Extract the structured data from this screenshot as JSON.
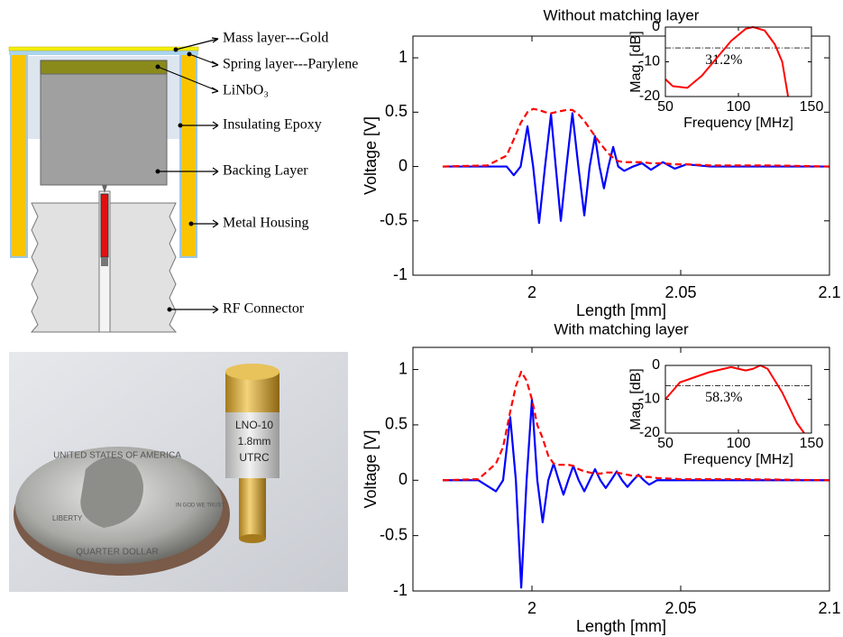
{
  "diagram": {
    "labels": [
      "Mass layer---Gold",
      "Spring layer---Parylene",
      "LiNbO₃",
      "Insulating Epoxy",
      "Backing Layer",
      "Metal Housing",
      "RF Connector"
    ]
  },
  "photo": {
    "device_labels": [
      "LNO-10",
      "1.8mm",
      "UTRC"
    ],
    "coin_labels": [
      "UNITED STATES OF AMERICA",
      "LIBERTY",
      "IN GOD WE TRUST",
      "QUARTER DOLLAR"
    ]
  },
  "chart_data": [
    {
      "type": "line",
      "title": "Without matching layer",
      "x_label": "Length [mm]",
      "y_label": "Voltage [V]",
      "xlim": [
        1.96,
        2.1
      ],
      "ylim": [
        -1,
        1.2
      ],
      "xticks": [
        2,
        2.05,
        2.1
      ],
      "yticks": [
        -1,
        -0.5,
        0,
        0.5,
        1
      ],
      "x": [
        1.97,
        1.985,
        1.9915,
        1.9939,
        1.9962,
        1.9985,
        2.0004,
        2.0024,
        2.0044,
        2.0064,
        2.008,
        2.0097,
        2.0116,
        2.0136,
        2.0156,
        2.0176,
        2.0194,
        2.0212,
        2.0227,
        2.0242,
        2.0257,
        2.0273,
        2.029,
        2.031,
        2.034,
        2.037,
        2.04,
        2.044,
        2.048,
        2.052,
        2.06,
        2.08,
        2.1
      ],
      "series": [
        {
          "color": "#0000ff",
          "dashed": false,
          "values": [
            0,
            0,
            0,
            -0.08,
            0,
            0.37,
            0,
            -0.52,
            0,
            0.48,
            0,
            -0.5,
            0,
            0.49,
            0,
            -0.45,
            0,
            0.28,
            0,
            -0.2,
            0,
            0.18,
            0,
            -0.04,
            0,
            0.03,
            -0.03,
            0.04,
            -0.02,
            0.02,
            0,
            0,
            0
          ]
        },
        {
          "color": "#ff0000",
          "dashed": true,
          "values": [
            0,
            0.01,
            0.1,
            0.25,
            0.4,
            0.5,
            0.53,
            0.52,
            0.5,
            0.49,
            0.5,
            0.51,
            0.52,
            0.52,
            0.48,
            0.42,
            0.35,
            0.28,
            0.22,
            0.17,
            0.12,
            0.08,
            0.05,
            0.04,
            0.04,
            0.04,
            0.03,
            0.03,
            0.02,
            0.02,
            0.01,
            0.01,
            0
          ]
        }
      ]
    },
    {
      "type": "line",
      "x_label": "Frequency [MHz]",
      "y_label": "Mag. [dB]",
      "annotation": "31.2%",
      "xlim": [
        50,
        150
      ],
      "ylim": [
        -20,
        0
      ],
      "xticks": [
        50,
        100,
        150
      ],
      "yticks": [
        -20,
        -10,
        0
      ],
      "reference_line": -6,
      "x": [
        50,
        55,
        65,
        75,
        85,
        95,
        105,
        110,
        118,
        125,
        130,
        134
      ],
      "series": [
        {
          "color": "#ff0000",
          "dashed": false,
          "values": [
            -15,
            -17,
            -17.5,
            -14,
            -9,
            -4,
            -0.5,
            0,
            -1,
            -5,
            -10,
            -20
          ]
        }
      ]
    },
    {
      "type": "line",
      "title": "With matching layer",
      "x_label": "Length [mm]",
      "y_label": "Voltage [V]",
      "xlim": [
        1.96,
        2.1
      ],
      "ylim": [
        -1,
        1.2
      ],
      "xticks": [
        2,
        2.05,
        2.1
      ],
      "yticks": [
        -1,
        -0.5,
        0,
        0.5,
        1
      ],
      "x": [
        1.97,
        1.982,
        1.9879,
        1.9903,
        1.9927,
        1.9946,
        1.9964,
        1.9982,
        2.0,
        2.0018,
        2.0036,
        2.0055,
        2.0073,
        2.009,
        2.0106,
        2.0122,
        2.0139,
        2.0157,
        2.0176,
        2.0194,
        2.0212,
        2.023,
        2.0248,
        2.0266,
        2.0285,
        2.0303,
        2.0321,
        2.034,
        2.0358,
        2.0376,
        2.0394,
        2.042,
        2.05,
        2.07,
        2.1
      ],
      "series": [
        {
          "color": "#0000ff",
          "dashed": false,
          "values": [
            0,
            0,
            -0.1,
            0,
            0.57,
            0,
            -0.97,
            0,
            0.73,
            0,
            -0.38,
            0,
            0.15,
            0,
            -0.13,
            0,
            0.13,
            0,
            -0.1,
            0,
            0.1,
            0,
            -0.07,
            0,
            0.08,
            0,
            -0.06,
            0,
            0.05,
            0,
            -0.04,
            0,
            0,
            0,
            0
          ]
        },
        {
          "color": "#ff0000",
          "dashed": true,
          "values": [
            0,
            0.01,
            0.15,
            0.3,
            0.62,
            0.85,
            0.98,
            0.9,
            0.73,
            0.5,
            0.38,
            0.22,
            0.15,
            0.14,
            0.14,
            0.14,
            0.13,
            0.1,
            0.08,
            0.07,
            0.06,
            0.06,
            0.07,
            0.07,
            0.07,
            0.06,
            0.05,
            0.04,
            0.04,
            0.03,
            0.03,
            0.02,
            0.01,
            0.01,
            0
          ]
        }
      ]
    },
    {
      "type": "line",
      "x_label": "Frequency [MHz]",
      "y_label": "Mag. [dB]",
      "annotation": "58.3%",
      "xlim": [
        50,
        150
      ],
      "ylim": [
        -20,
        0
      ],
      "xticks": [
        50,
        100,
        150
      ],
      "yticks": [
        -20,
        -10,
        0
      ],
      "reference_line": -6,
      "x": [
        50,
        60,
        70,
        80,
        90,
        95,
        105,
        110,
        115,
        120,
        130,
        140,
        145
      ],
      "series": [
        {
          "color": "#ff0000",
          "dashed": false,
          "values": [
            -10,
            -5,
            -3.5,
            -2,
            -1,
            -0.5,
            -1.5,
            -1,
            0,
            -1,
            -8,
            -17,
            -20
          ]
        }
      ]
    }
  ]
}
